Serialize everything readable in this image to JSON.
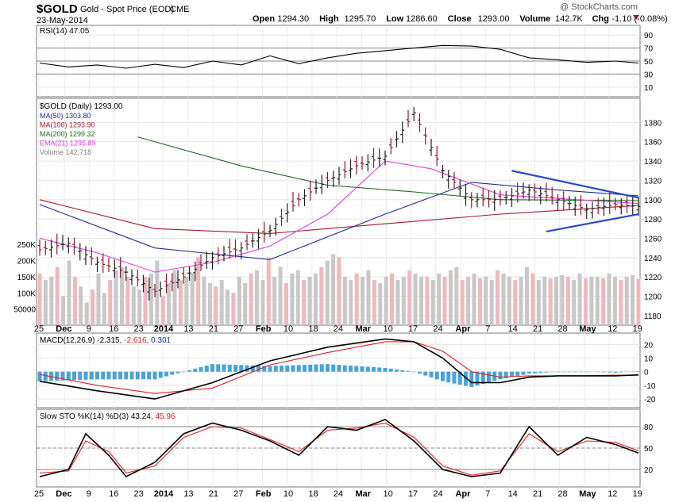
{
  "header": {
    "symbol": "$GOLD",
    "description": "Gold - Spot Price (EOD)",
    "exchange": "CME",
    "date": "23-May-2014",
    "watermark": "@ StockCharts.com",
    "quote": [
      {
        "label": "Open",
        "value": "1294.30"
      },
      {
        "label": "High",
        "value": "1295.70"
      },
      {
        "label": "Low",
        "value": "1286.60"
      },
      {
        "label": "Close",
        "value": "1293.00"
      },
      {
        "label": "Volume",
        "value": "142.7K"
      },
      {
        "label": "Chg",
        "value": "-1.10 (-0.08%)"
      }
    ]
  },
  "colors": {
    "ma50": "#1f2f8f",
    "ma100": "#a11a2c",
    "ma200": "#1e6b1e",
    "ema21": "#e040e0",
    "up": "#202020",
    "down": "#8b1a2a",
    "vol_up": "#c8c8c8",
    "vol_down": "#f0b8bc",
    "trendline": "#2a49c9",
    "hist": "#4aa3d8",
    "signal": "#e02020"
  },
  "xaxis": {
    "ticks": [
      "25",
      "Dec",
      "9",
      "16",
      "23",
      "2014",
      "13",
      "21",
      "27",
      "Feb",
      "10",
      "18",
      "24",
      "Mar",
      "10",
      "17",
      "24",
      "Apr",
      "7",
      "14",
      "21",
      "28",
      "May",
      "12",
      "19"
    ],
    "bold": [
      "Dec",
      "2014",
      "Feb",
      "Mar",
      "Apr",
      "May"
    ]
  },
  "chart_data": [
    {
      "type": "line",
      "title": "RSI(14) 47.05",
      "value": 47.05,
      "ylim": [
        0,
        100
      ],
      "yticks": [
        10,
        30,
        50,
        70,
        90
      ],
      "reference_lines": [
        30,
        50,
        70
      ],
      "x": [
        0,
        5,
        10,
        15,
        20,
        25,
        30,
        35,
        40,
        45,
        50,
        55,
        60,
        65,
        70,
        75,
        80,
        85,
        90,
        95,
        100,
        104
      ],
      "values": [
        47,
        41,
        44,
        39,
        45,
        40,
        50,
        44,
        58,
        46,
        55,
        62,
        66,
        70,
        74,
        73,
        68,
        55,
        52,
        48,
        50,
        47
      ]
    },
    {
      "type": "candlestick",
      "title": "$GOLD (Daily) 1293.00",
      "ylim": [
        1175,
        1400
      ],
      "yticks": [
        1180,
        1200,
        1220,
        1240,
        1260,
        1280,
        1300,
        1320,
        1340,
        1360,
        1380
      ],
      "legend": [
        {
          "name": "MA(50) 1303.80",
          "color": "#1f2f8f"
        },
        {
          "name": "MA(100) 1293.90",
          "color": "#a11a2c"
        },
        {
          "name": "MA(200) 1299.32",
          "color": "#1e6b1e"
        },
        {
          "name": "EMA(21) 1295.89",
          "color": "#e040e0"
        },
        {
          "name": "Volume 142,718",
          "color": "#808080"
        }
      ],
      "price_x": [
        0,
        5,
        10,
        15,
        20,
        25,
        30,
        35,
        40,
        45,
        50,
        55,
        60,
        65,
        70,
        75,
        80,
        85,
        90,
        95,
        100,
        104
      ],
      "price_y": [
        1248,
        1255,
        1235,
        1225,
        1205,
        1220,
        1240,
        1250,
        1268,
        1300,
        1320,
        1335,
        1345,
        1390,
        1330,
        1300,
        1300,
        1310,
        1300,
        1290,
        1295,
        1293
      ],
      "ma50": [
        {
          "x": 0,
          "y": 1295
        },
        {
          "x": 20,
          "y": 1250
        },
        {
          "x": 40,
          "y": 1238
        },
        {
          "x": 60,
          "y": 1285
        },
        {
          "x": 75,
          "y": 1318
        },
        {
          "x": 90,
          "y": 1310
        },
        {
          "x": 104,
          "y": 1304
        }
      ],
      "ma100": [
        {
          "x": 0,
          "y": 1300
        },
        {
          "x": 20,
          "y": 1270
        },
        {
          "x": 40,
          "y": 1265
        },
        {
          "x": 60,
          "y": 1275
        },
        {
          "x": 80,
          "y": 1285
        },
        {
          "x": 104,
          "y": 1294
        }
      ],
      "ma200": [
        {
          "x": 17,
          "y": 1365
        },
        {
          "x": 35,
          "y": 1335
        },
        {
          "x": 50,
          "y": 1315
        },
        {
          "x": 65,
          "y": 1308
        },
        {
          "x": 80,
          "y": 1300
        },
        {
          "x": 104,
          "y": 1299
        }
      ],
      "ema21": [
        {
          "x": 0,
          "y": 1260
        },
        {
          "x": 10,
          "y": 1245
        },
        {
          "x": 20,
          "y": 1225
        },
        {
          "x": 30,
          "y": 1235
        },
        {
          "x": 40,
          "y": 1252
        },
        {
          "x": 50,
          "y": 1285
        },
        {
          "x": 60,
          "y": 1340
        },
        {
          "x": 68,
          "y": 1332
        },
        {
          "x": 80,
          "y": 1305
        },
        {
          "x": 104,
          "y": 1296
        }
      ],
      "trendlines": [
        {
          "x1": 82,
          "y1": 1330,
          "x2": 104,
          "y2": 1302
        },
        {
          "x1": 88,
          "y1": 1267,
          "x2": 104,
          "y2": 1285
        }
      ],
      "volume_scale": {
        "max": 270000,
        "ticks": [
          {
            "v": 50000,
            "label": "50000"
          },
          {
            "v": 100000,
            "label": "100K"
          },
          {
            "v": 150000,
            "label": "150K"
          },
          {
            "v": 200000,
            "label": "200K"
          },
          {
            "v": 250000,
            "label": "250K"
          }
        ]
      },
      "volume": [
        160000,
        140000,
        150000,
        180000,
        90000,
        200000,
        150000,
        120000,
        70000,
        110000,
        160000,
        100000,
        140000,
        170000,
        180000,
        150000,
        120000,
        110000,
        150000,
        160000,
        200000,
        90000,
        130000,
        170000,
        140000,
        150000,
        160000,
        210000,
        150000,
        130000,
        120000,
        140000,
        110000,
        100000,
        150000,
        130000,
        160000,
        170000,
        140000,
        210000,
        150000,
        180000,
        130000,
        160000,
        170000,
        140000,
        150000,
        160000,
        180000,
        200000,
        220000,
        210000,
        150000,
        140000,
        160000,
        150000,
        170000,
        140000,
        130000,
        150000,
        160000,
        140000,
        150000,
        170000,
        160000,
        150000,
        150000,
        140000,
        160000,
        150000,
        170000,
        180000,
        140000,
        150000,
        160000,
        145000,
        150000,
        140000,
        170000,
        160000,
        150000,
        140000,
        150000,
        180000,
        160000,
        140000,
        150000,
        145000,
        150000,
        155000,
        150000,
        140000,
        160000,
        145000,
        150000,
        150000,
        145000,
        160000,
        150000,
        140000,
        150000,
        155000,
        142718
      ]
    },
    {
      "type": "line",
      "title": "MACD(12,26,9) -2.315, -2.616, 0.301",
      "title_parts": [
        {
          "t": "MACD(12,26,9) -2.315, ",
          "c": "#000"
        },
        {
          "t": "-2.616, ",
          "c": "#e02020"
        },
        {
          "t": "0.301",
          "c": "#1f2f8f"
        }
      ],
      "ylim": [
        -24,
        26
      ],
      "yticks": [
        -20,
        -10,
        0,
        10,
        20
      ],
      "x": [
        0,
        10,
        20,
        30,
        40,
        50,
        60,
        65,
        70,
        75,
        80,
        85,
        90,
        95,
        100,
        104
      ],
      "macd": [
        -7,
        -14,
        -20,
        -8,
        8,
        18,
        24,
        22,
        10,
        -8,
        -8,
        -4,
        -3,
        -3,
        -3,
        -2.3
      ],
      "signal": [
        -2,
        -10,
        -16,
        -12,
        5,
        14,
        22,
        22,
        15,
        0,
        -4,
        -3,
        -3,
        -3,
        -2.5,
        -2.6
      ]
    },
    {
      "type": "line",
      "title": "Slow STO %K(14) %D(3) 43.24, 45.96",
      "title_parts": [
        {
          "t": "Slow STO %K(14) %D(3) 43.24, ",
          "c": "#000"
        },
        {
          "t": "45.96",
          "c": "#e02020"
        }
      ],
      "ylim": [
        0,
        100
      ],
      "yticks": [
        20,
        50,
        80
      ],
      "reference_lines": [
        20,
        50,
        80
      ],
      "x": [
        0,
        5,
        8,
        12,
        15,
        20,
        25,
        30,
        35,
        40,
        45,
        50,
        55,
        60,
        65,
        70,
        75,
        80,
        85,
        90,
        95,
        100,
        104
      ],
      "k": [
        10,
        20,
        70,
        40,
        10,
        30,
        70,
        85,
        75,
        60,
        40,
        80,
        75,
        90,
        60,
        20,
        10,
        15,
        80,
        40,
        65,
        55,
        43
      ],
      "d": [
        15,
        18,
        60,
        45,
        15,
        25,
        65,
        80,
        78,
        62,
        45,
        75,
        78,
        85,
        65,
        25,
        12,
        18,
        70,
        45,
        60,
        58,
        46
      ]
    }
  ]
}
